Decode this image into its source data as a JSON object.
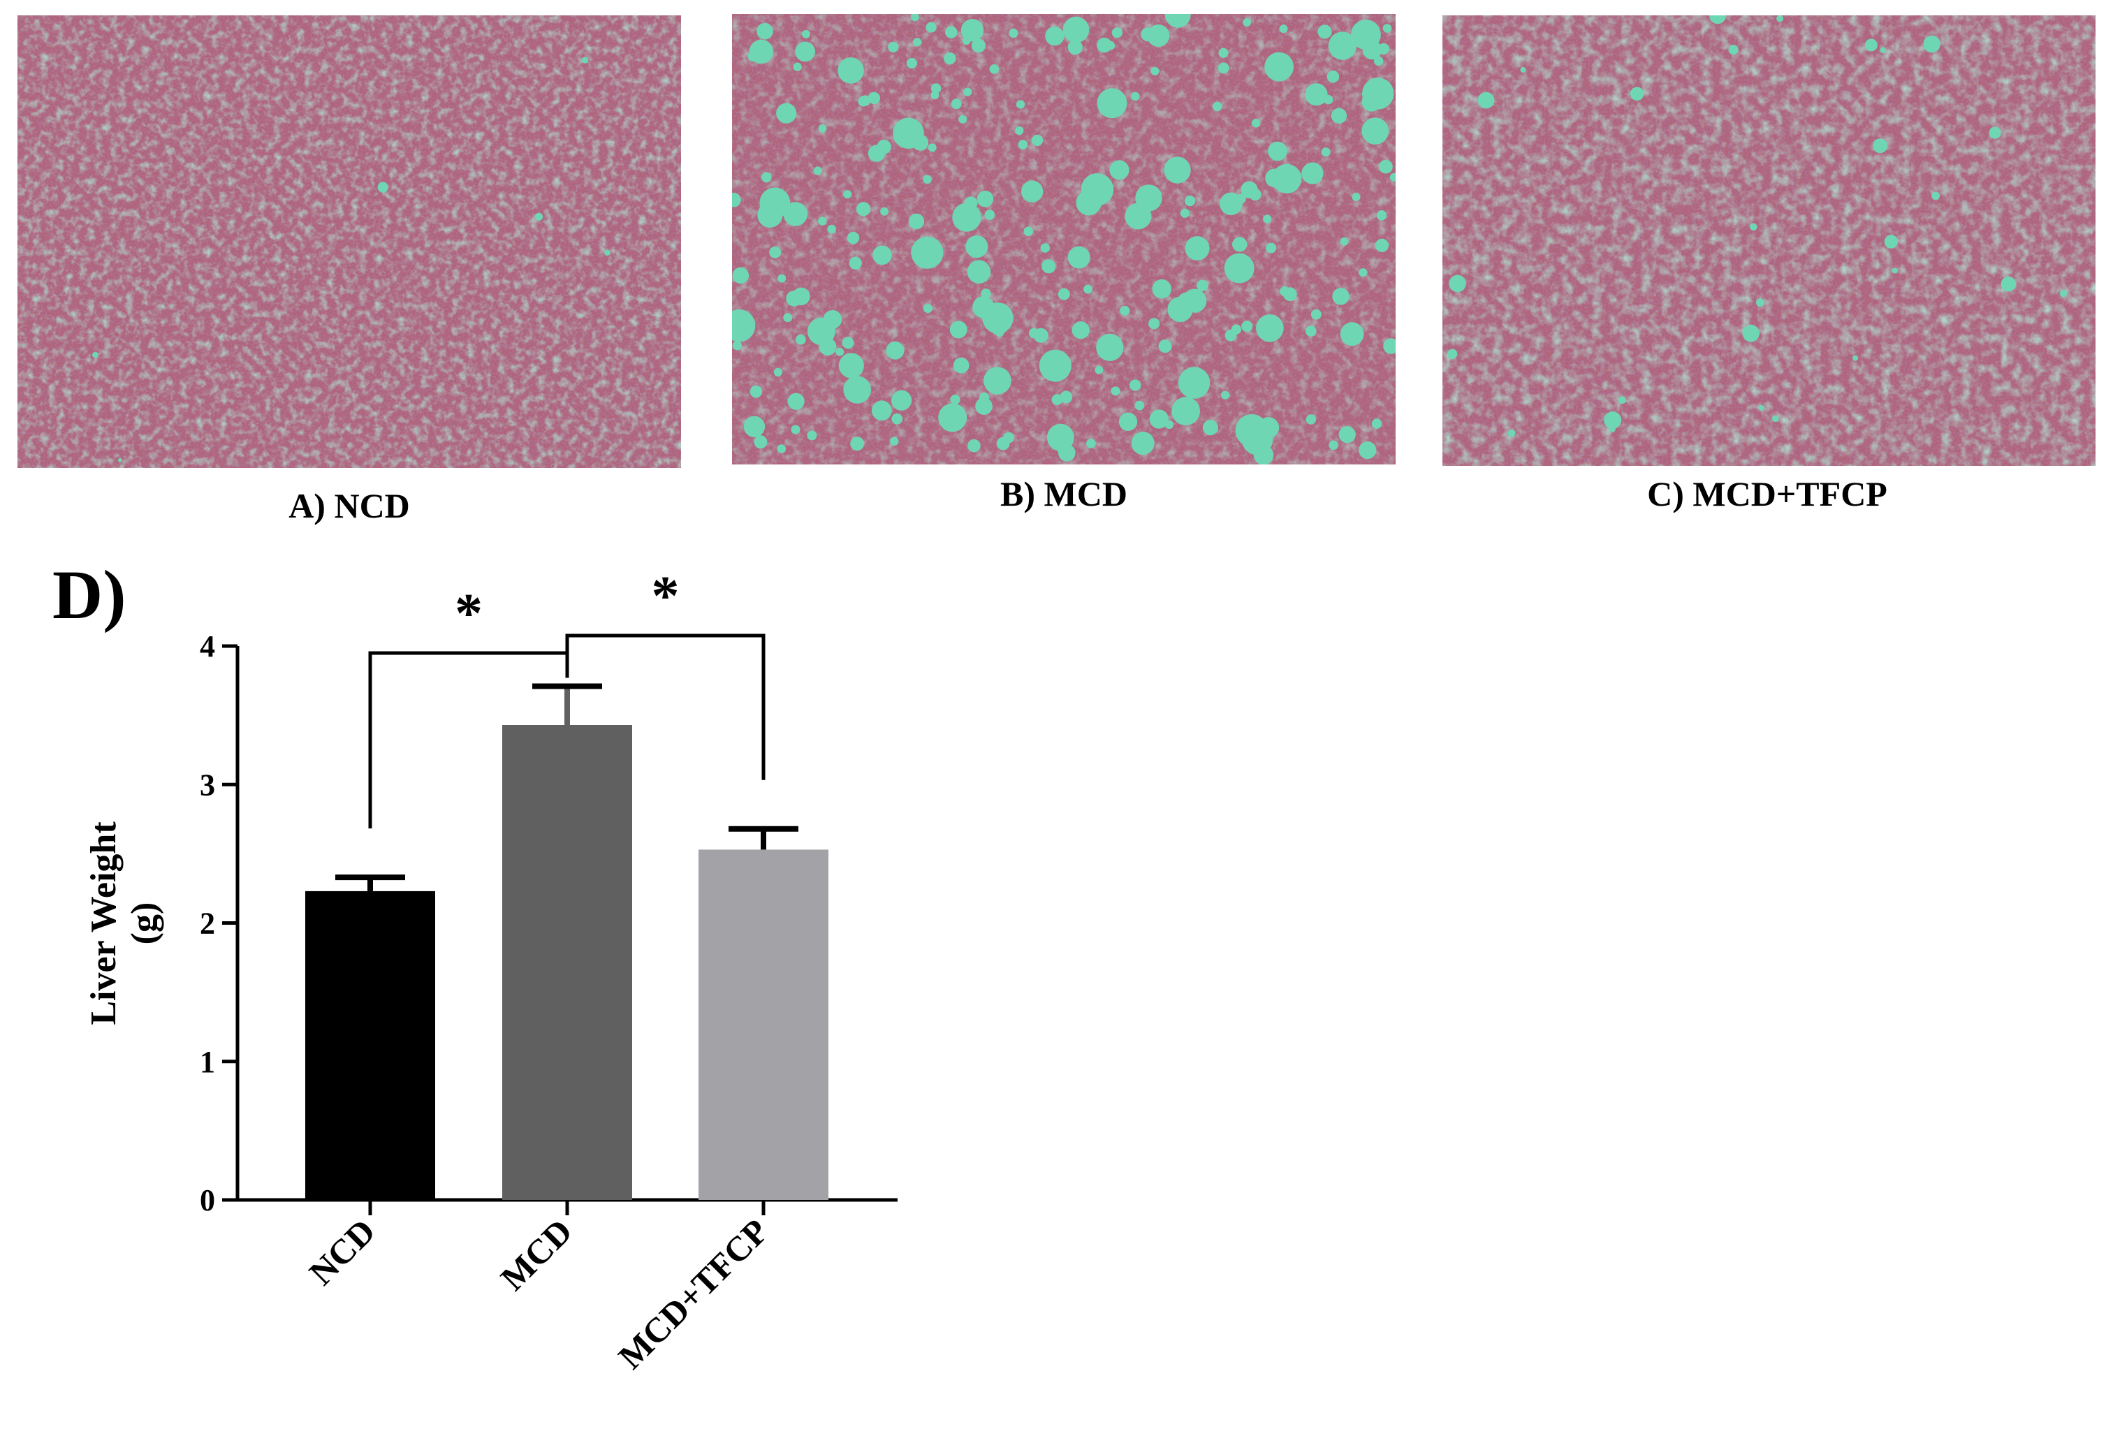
{
  "panels": [
    {
      "caption": "A) NCD",
      "tissue": "normal-liver",
      "lipid_droplets": "few"
    },
    {
      "caption": "B) MCD",
      "tissue": "steatotic-liver",
      "lipid_droplets": "many"
    },
    {
      "caption": "C) MCD+TFCP",
      "tissue": "treated-liver",
      "lipid_droplets": "moderate"
    }
  ],
  "colors": {
    "tissue_base": "#b0647a",
    "tissue_dark": "#7a4470",
    "vacuole": "#6fd6b3"
  },
  "chart_panel_label": "D)",
  "chart_data": {
    "type": "bar",
    "categories": [
      "NCD",
      "MCD",
      "MCD+TFCP"
    ],
    "values": [
      2.23,
      3.43,
      2.53
    ],
    "errors": [
      0.1,
      0.28,
      0.15
    ],
    "bar_colors": [
      "#000000",
      "#606060",
      "#a3a3a7"
    ],
    "ylabel": "Liver Weight (g)",
    "ylim": [
      0,
      4
    ],
    "yticks": [
      "0",
      "1",
      "2",
      "3",
      "4"
    ],
    "grid": false,
    "significance": [
      {
        "from": "NCD",
        "to": "MCD",
        "label": "*"
      },
      {
        "from": "MCD",
        "to": "MCD+TFCP",
        "label": "*"
      }
    ]
  }
}
